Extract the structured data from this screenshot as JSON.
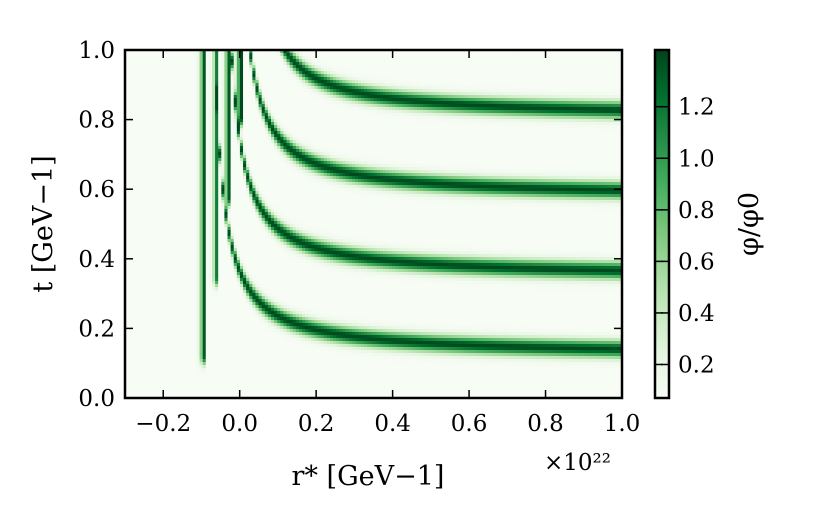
{
  "chart_data": {
    "type": "heatmap",
    "title": "",
    "xlabel": "r* [GeV−1]",
    "ylabel": "t [GeV−1]",
    "x_multiplier": "×10²²",
    "xlim": [
      -0.3,
      1.0
    ],
    "ylim": [
      0.0,
      1.0
    ],
    "xticks": [
      "−0.2",
      "0.0",
      "0.2",
      "0.4",
      "0.6",
      "0.8",
      "1.0"
    ],
    "xtick_values": [
      -0.2,
      0.0,
      0.2,
      0.4,
      0.6,
      0.8,
      1.0
    ],
    "yticks": [
      "0.0",
      "0.2",
      "0.4",
      "0.6",
      "0.8",
      "1.0"
    ],
    "ytick_values": [
      0.0,
      0.2,
      0.4,
      0.6,
      0.8,
      1.0
    ],
    "colormap": "Greens",
    "colorbar": {
      "label": "φ/φ0",
      "range": [
        0.07,
        1.42
      ],
      "ticks": [
        "0.2",
        "0.4",
        "0.6",
        "0.8",
        "1.0",
        "1.2"
      ],
      "tick_values": [
        0.2,
        0.4,
        0.6,
        0.8,
        1.0,
        1.2
      ]
    },
    "bands": [
      {
        "t_asymptote": 0.12,
        "r_wall": -0.09
      },
      {
        "t_asymptote": 0.345,
        "r_wall": -0.055
      },
      {
        "t_asymptote": 0.575,
        "r_wall": -0.025
      },
      {
        "t_asymptote": 0.805,
        "r_wall": 0.005
      }
    ],
    "background_value": 0.07,
    "peak_value": 1.4,
    "grid": false
  }
}
